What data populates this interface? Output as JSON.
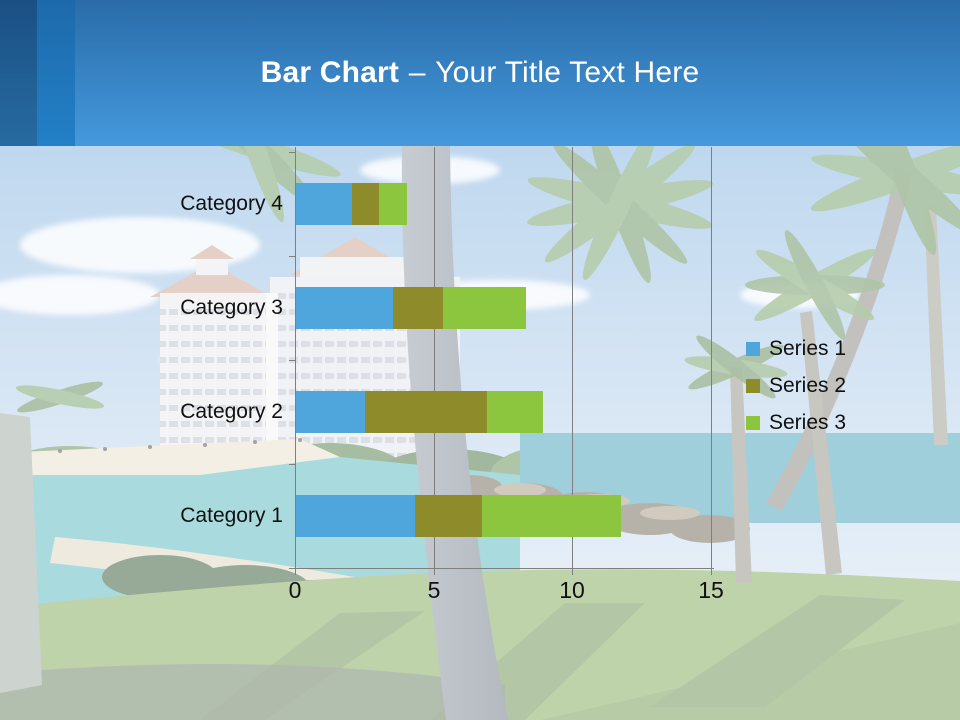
{
  "slide": {
    "title": {
      "bold": "Bar Chart",
      "separator": "–",
      "rest": "Your Title Text Here"
    },
    "header_colors": {
      "band_top": "#2a6ca9",
      "band_bottom": "#4499dd",
      "stripe_dark": "#1b5084",
      "stripe_mid": "#1d6aab"
    },
    "background_description": "tropical beach resort photo, washed out with white overlay"
  },
  "chart_data": {
    "type": "bar",
    "orientation": "horizontal",
    "stacked": true,
    "categories": [
      "Category 1",
      "Category 2",
      "Category 3",
      "Category 4"
    ],
    "category_display_order_top_to_bottom": [
      "Category 4",
      "Category 3",
      "Category 2",
      "Category 1"
    ],
    "series": [
      {
        "name": "Series 1",
        "color": "#4EA6DC",
        "values": [
          4.3,
          2.5,
          3.5,
          2.0
        ]
      },
      {
        "name": "Series 2",
        "color": "#8E8B2A",
        "values": [
          2.4,
          4.4,
          1.8,
          1.0
        ]
      },
      {
        "name": "Series 3",
        "color": "#8CC63F",
        "values": [
          5.0,
          2.0,
          3.0,
          1.0
        ]
      }
    ],
    "x_axis": {
      "min": 0,
      "max": 15,
      "ticks": [
        0,
        5,
        10,
        15
      ],
      "tick_labels": [
        "0",
        "5",
        "10",
        "15"
      ]
    },
    "grid": true,
    "grid_color": "#7f7f7f",
    "text_color": "#111111",
    "legend_position": "right",
    "title": ""
  }
}
